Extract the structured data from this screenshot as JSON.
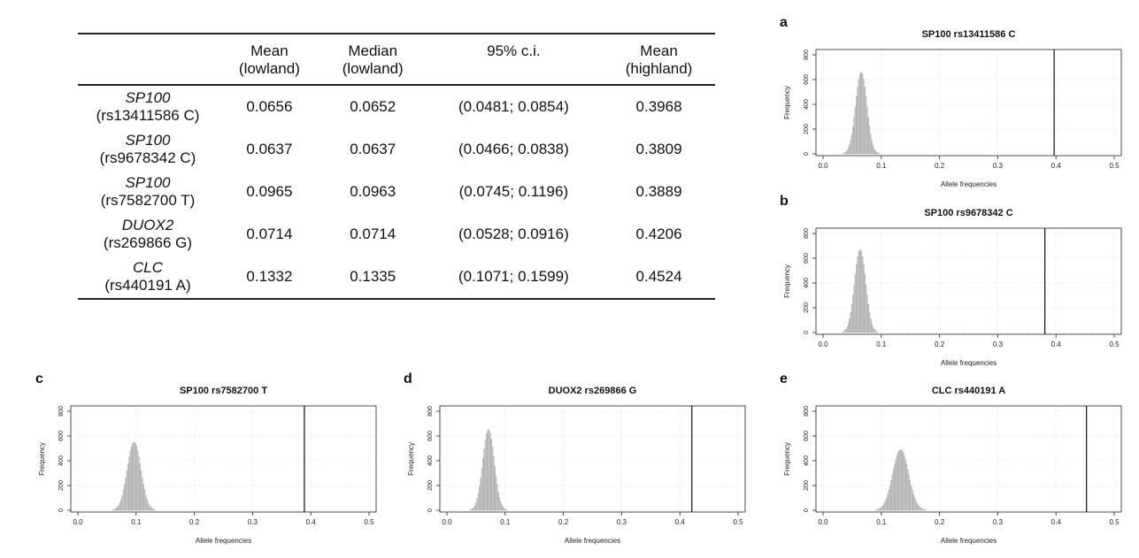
{
  "table": {
    "headers": [
      {
        "line1": "",
        "line2": ""
      },
      {
        "line1": "Mean",
        "line2": "(lowland)"
      },
      {
        "line1": "Median",
        "line2": "(lowland)"
      },
      {
        "line1": "95% c.i.",
        "line2": ""
      },
      {
        "line1": "Mean",
        "line2": "(highland)"
      }
    ],
    "rows": [
      {
        "gene": "SP100",
        "snp": "(rs13411586 C)",
        "mean_low": "0.0656",
        "median_low": "0.0652",
        "ci": "(0.0481; 0.0854)",
        "mean_high": "0.3968"
      },
      {
        "gene": "SP100",
        "snp": "(rs9678342 C)",
        "mean_low": "0.0637",
        "median_low": "0.0637",
        "ci": "(0.0466; 0.0838)",
        "mean_high": "0.3809"
      },
      {
        "gene": "SP100",
        "snp": "(rs7582700 T)",
        "mean_low": "0.0965",
        "median_low": "0.0963",
        "ci": "(0.0745; 0.1196)",
        "mean_high": "0.3889"
      },
      {
        "gene": "DUOX2",
        "snp": "(rs269866 G)",
        "mean_low": "0.0714",
        "median_low": "0.0714",
        "ci": "(0.0528; 0.0916)",
        "mean_high": "0.4206"
      },
      {
        "gene": "CLC",
        "snp": "(rs440191 A)",
        "mean_low": "0.1332",
        "median_low": "0.1335",
        "ci": "(0.1071; 0.1599)",
        "mean_high": "0.4524"
      }
    ]
  },
  "chart_data": [
    {
      "id": "a",
      "type": "bar",
      "title": "SP100 rs13411586 C",
      "xlabel": "Allele frequencies",
      "ylabel": "Frequency",
      "xlim": [
        0,
        0.5
      ],
      "ylim": [
        0,
        800
      ],
      "xticks": [
        "0.0",
        "0.1",
        "0.2",
        "0.3",
        "0.4",
        "0.5"
      ],
      "yticks": [
        "0",
        "200",
        "400",
        "600",
        "800"
      ],
      "grid": true,
      "hist_mean": 0.0656,
      "hist_sd": 0.0095,
      "hist_peak": 660,
      "vline": 0.3968
    },
    {
      "id": "b",
      "type": "bar",
      "title": "SP100 rs9678342 C",
      "xlabel": "Allele frequencies",
      "ylabel": "Frequency",
      "xlim": [
        0,
        0.5
      ],
      "ylim": [
        0,
        800
      ],
      "xticks": [
        "0.0",
        "0.1",
        "0.2",
        "0.3",
        "0.4",
        "0.5"
      ],
      "yticks": [
        "0",
        "200",
        "400",
        "600",
        "800"
      ],
      "grid": true,
      "hist_mean": 0.0637,
      "hist_sd": 0.0095,
      "hist_peak": 670,
      "vline": 0.3809
    },
    {
      "id": "c",
      "type": "bar",
      "title": "SP100 rs7582700 T",
      "xlabel": "Allele frequencies",
      "ylabel": "Frequency",
      "xlim": [
        0,
        0.5
      ],
      "ylim": [
        0,
        800
      ],
      "xticks": [
        "0.0",
        "0.1",
        "0.2",
        "0.3",
        "0.4",
        "0.5"
      ],
      "yticks": [
        "0",
        "200",
        "400",
        "600",
        "800"
      ],
      "grid": true,
      "hist_mean": 0.0965,
      "hist_sd": 0.0115,
      "hist_peak": 550,
      "vline": 0.3889
    },
    {
      "id": "d",
      "type": "bar",
      "title": "DUOX2 rs269866 G",
      "xlabel": "Allele frequencies",
      "ylabel": "Frequency",
      "xlim": [
        0,
        0.5
      ],
      "ylim": [
        0,
        800
      ],
      "xticks": [
        "0.0",
        "0.1",
        "0.2",
        "0.3",
        "0.4",
        "0.5"
      ],
      "yticks": [
        "0",
        "200",
        "400",
        "600",
        "800"
      ],
      "grid": true,
      "hist_mean": 0.0714,
      "hist_sd": 0.0098,
      "hist_peak": 650,
      "vline": 0.4206
    },
    {
      "id": "e",
      "type": "bar",
      "title": "CLC rs440191 A",
      "xlabel": "Allele frequencies",
      "ylabel": "Frequency",
      "xlim": [
        0,
        0.5
      ],
      "ylim": [
        0,
        800
      ],
      "xticks": [
        "0.0",
        "0.1",
        "0.2",
        "0.3",
        "0.4",
        "0.5"
      ],
      "yticks": [
        "0",
        "200",
        "400",
        "600",
        "800"
      ],
      "grid": true,
      "hist_mean": 0.1332,
      "hist_sd": 0.0135,
      "hist_peak": 490,
      "vline": 0.4524
    }
  ]
}
